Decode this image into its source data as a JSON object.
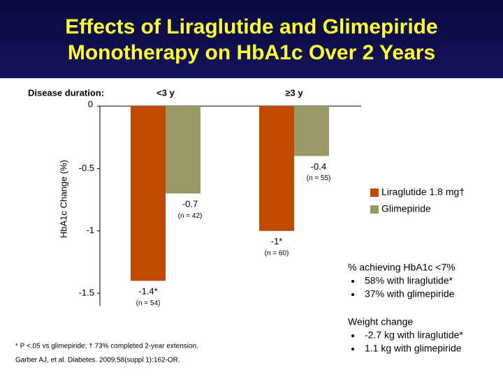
{
  "chart_data": {
    "type": "bar",
    "title": "Effects of Liraglutide and Glimepiride Monotherapy on HbA1c Over 2 Years",
    "group_label": "Disease duration:",
    "categories": [
      "<3 y",
      "≥3 y"
    ],
    "y_label": "HbA1c Change (%)",
    "ylim": [
      -1.6,
      0
    ],
    "yticks": [
      0,
      -0.5,
      -1,
      -1.5
    ],
    "legend": "right",
    "series": [
      {
        "name": "Liraglutide 1.8 mg†",
        "color": "#c04a00",
        "values": [
          -1.4,
          -1
        ],
        "value_labels": [
          "-1.4*",
          "-1*"
        ],
        "n_labels": [
          "(n = 54)",
          "(n = 60)"
        ]
      },
      {
        "name": "Glimepiride",
        "color": "#999966",
        "values": [
          -0.7,
          -0.4
        ],
        "value_labels": [
          "-0.7",
          "-0.4"
        ],
        "n_labels": [
          "(n = 42)",
          "(n = 55)"
        ]
      }
    ],
    "notes": [
      {
        "heading": "% achieving HbA1c <7%",
        "items": [
          "58% with liraglutide*",
          "37% with glimepiride"
        ]
      },
      {
        "heading": "Weight change",
        "items": [
          "-2.7 kg with liraglutide*",
          "1.1 kg with glimepiride"
        ]
      }
    ],
    "footnote": "* P <.05 vs glimepiride; † 73% completed 2-year extension.",
    "citation": "Garber AJ, et al. Diabetes. 2009;58(suppl 1):162-OR."
  }
}
